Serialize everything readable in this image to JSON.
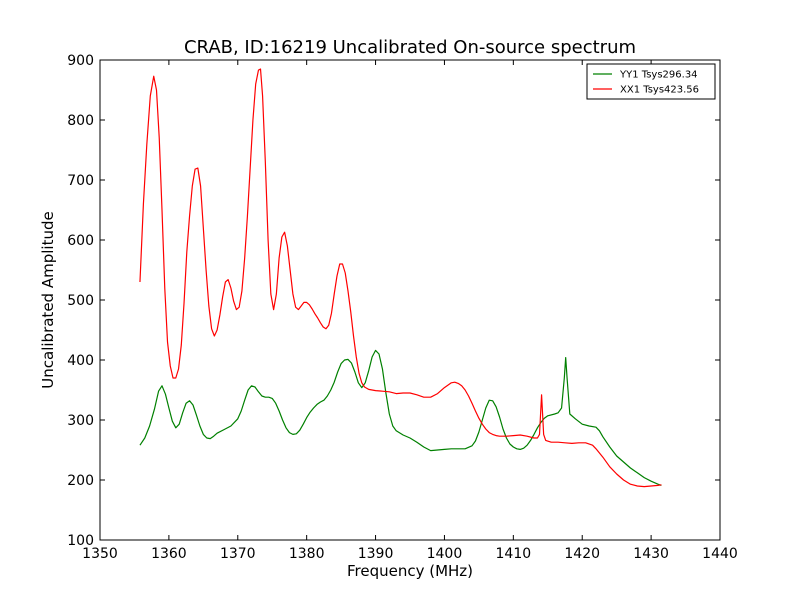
{
  "chart_data": {
    "type": "line",
    "title": "CRAB, ID:16219 Uncalibrated On-source spectrum",
    "xlabel": "Frequency (MHz)",
    "ylabel": "Uncalibrated Amplitude",
    "xlim": [
      1350,
      1440
    ],
    "ylim": [
      100,
      900
    ],
    "xticks": [
      1350,
      1360,
      1370,
      1380,
      1390,
      1400,
      1410,
      1420,
      1430,
      1440
    ],
    "yticks": [
      100,
      200,
      300,
      400,
      500,
      600,
      700,
      800,
      900
    ],
    "grid": false,
    "legend": "top-right",
    "series": [
      {
        "name": "YY1 Tsys296.34",
        "color": "#008000",
        "points": [
          [
            1355.8,
            258
          ],
          [
            1356.5,
            270
          ],
          [
            1357.2,
            290
          ],
          [
            1357.9,
            318
          ],
          [
            1358.5,
            348
          ],
          [
            1359.0,
            357
          ],
          [
            1359.5,
            343
          ],
          [
            1360.0,
            320
          ],
          [
            1360.5,
            298
          ],
          [
            1361.0,
            287
          ],
          [
            1361.5,
            293
          ],
          [
            1362.0,
            312
          ],
          [
            1362.5,
            328
          ],
          [
            1363.0,
            332
          ],
          [
            1363.5,
            325
          ],
          [
            1364.0,
            308
          ],
          [
            1364.5,
            290
          ],
          [
            1365.0,
            276
          ],
          [
            1365.5,
            270
          ],
          [
            1366.0,
            269
          ],
          [
            1366.5,
            273
          ],
          [
            1367.0,
            278
          ],
          [
            1368.0,
            284
          ],
          [
            1369.0,
            290
          ],
          [
            1370.0,
            302
          ],
          [
            1370.5,
            315
          ],
          [
            1371.0,
            333
          ],
          [
            1371.5,
            350
          ],
          [
            1372.0,
            357
          ],
          [
            1372.5,
            355
          ],
          [
            1373.0,
            347
          ],
          [
            1373.5,
            340
          ],
          [
            1374.0,
            338
          ],
          [
            1374.5,
            338
          ],
          [
            1375.0,
            336
          ],
          [
            1375.5,
            328
          ],
          [
            1376.0,
            315
          ],
          [
            1376.5,
            300
          ],
          [
            1377.0,
            287
          ],
          [
            1377.5,
            279
          ],
          [
            1378.0,
            276
          ],
          [
            1378.5,
            277
          ],
          [
            1379.0,
            283
          ],
          [
            1379.5,
            293
          ],
          [
            1380.0,
            304
          ],
          [
            1380.5,
            313
          ],
          [
            1381.0,
            320
          ],
          [
            1381.5,
            326
          ],
          [
            1382.0,
            330
          ],
          [
            1382.5,
            333
          ],
          [
            1383.0,
            340
          ],
          [
            1383.5,
            350
          ],
          [
            1384.0,
            363
          ],
          [
            1384.5,
            380
          ],
          [
            1385.0,
            394
          ],
          [
            1385.5,
            400
          ],
          [
            1386.0,
            401
          ],
          [
            1386.5,
            395
          ],
          [
            1387.0,
            380
          ],
          [
            1387.5,
            362
          ],
          [
            1388.0,
            354
          ],
          [
            1388.5,
            362
          ],
          [
            1389.0,
            382
          ],
          [
            1389.5,
            405
          ],
          [
            1390.0,
            416
          ],
          [
            1390.5,
            410
          ],
          [
            1391.0,
            385
          ],
          [
            1391.5,
            345
          ],
          [
            1392.0,
            310
          ],
          [
            1392.5,
            290
          ],
          [
            1393.0,
            282
          ],
          [
            1394.0,
            275
          ],
          [
            1395.0,
            270
          ],
          [
            1396.0,
            263
          ],
          [
            1397.0,
            255
          ],
          [
            1398.0,
            249
          ],
          [
            1399.0,
            250
          ],
          [
            1400.0,
            251
          ],
          [
            1401.0,
            252
          ],
          [
            1402.0,
            252
          ],
          [
            1403.0,
            252
          ],
          [
            1404.0,
            257
          ],
          [
            1404.5,
            265
          ],
          [
            1405.0,
            280
          ],
          [
            1405.5,
            300
          ],
          [
            1406.0,
            320
          ],
          [
            1406.5,
            333
          ],
          [
            1407.0,
            332
          ],
          [
            1407.5,
            322
          ],
          [
            1408.0,
            305
          ],
          [
            1408.5,
            285
          ],
          [
            1409.0,
            270
          ],
          [
            1409.5,
            260
          ],
          [
            1410.0,
            255
          ],
          [
            1410.5,
            252
          ],
          [
            1411.0,
            251
          ],
          [
            1411.5,
            253
          ],
          [
            1412.0,
            258
          ],
          [
            1412.5,
            266
          ],
          [
            1413.0,
            276
          ],
          [
            1413.5,
            287
          ],
          [
            1414.0,
            296
          ],
          [
            1414.5,
            303
          ],
          [
            1415.0,
            307
          ],
          [
            1416.0,
            310
          ],
          [
            1416.5,
            312
          ],
          [
            1417.0,
            320
          ],
          [
            1417.4,
            370
          ],
          [
            1417.6,
            404
          ],
          [
            1417.8,
            370
          ],
          [
            1418.2,
            310
          ],
          [
            1419.0,
            302
          ],
          [
            1420.0,
            293
          ],
          [
            1421.0,
            290
          ],
          [
            1422.0,
            288
          ],
          [
            1422.5,
            282
          ],
          [
            1423.0,
            272
          ],
          [
            1424.0,
            255
          ],
          [
            1425.0,
            240
          ],
          [
            1426.0,
            230
          ],
          [
            1427.0,
            220
          ],
          [
            1428.0,
            212
          ],
          [
            1429.0,
            204
          ],
          [
            1430.0,
            198
          ],
          [
            1431.0,
            193
          ],
          [
            1431.5,
            191
          ]
        ]
      },
      {
        "name": "XX1 Tsys423.56",
        "color": "#ff0000",
        "points": [
          [
            1355.8,
            530
          ],
          [
            1356.3,
            660
          ],
          [
            1356.8,
            760
          ],
          [
            1357.3,
            840
          ],
          [
            1357.8,
            873
          ],
          [
            1358.2,
            850
          ],
          [
            1358.6,
            770
          ],
          [
            1359.0,
            650
          ],
          [
            1359.4,
            520
          ],
          [
            1359.8,
            430
          ],
          [
            1360.2,
            390
          ],
          [
            1360.6,
            370
          ],
          [
            1361.0,
            370
          ],
          [
            1361.4,
            385
          ],
          [
            1361.8,
            425
          ],
          [
            1362.2,
            495
          ],
          [
            1362.6,
            580
          ],
          [
            1363.0,
            640
          ],
          [
            1363.4,
            690
          ],
          [
            1363.8,
            718
          ],
          [
            1364.2,
            720
          ],
          [
            1364.6,
            690
          ],
          [
            1365.0,
            620
          ],
          [
            1365.4,
            550
          ],
          [
            1365.8,
            490
          ],
          [
            1366.2,
            452
          ],
          [
            1366.6,
            440
          ],
          [
            1367.0,
            450
          ],
          [
            1367.4,
            475
          ],
          [
            1367.8,
            505
          ],
          [
            1368.2,
            530
          ],
          [
            1368.6,
            534
          ],
          [
            1369.0,
            520
          ],
          [
            1369.4,
            498
          ],
          [
            1369.8,
            484
          ],
          [
            1370.2,
            488
          ],
          [
            1370.6,
            515
          ],
          [
            1371.0,
            570
          ],
          [
            1371.4,
            640
          ],
          [
            1371.8,
            720
          ],
          [
            1372.2,
            800
          ],
          [
            1372.6,
            860
          ],
          [
            1373.0,
            883
          ],
          [
            1373.3,
            885
          ],
          [
            1373.6,
            840
          ],
          [
            1374.0,
            730
          ],
          [
            1374.4,
            600
          ],
          [
            1374.8,
            510
          ],
          [
            1375.2,
            484
          ],
          [
            1375.6,
            510
          ],
          [
            1376.0,
            570
          ],
          [
            1376.4,
            605
          ],
          [
            1376.8,
            613
          ],
          [
            1377.2,
            590
          ],
          [
            1377.6,
            550
          ],
          [
            1378.0,
            510
          ],
          [
            1378.4,
            488
          ],
          [
            1378.8,
            484
          ],
          [
            1379.2,
            490
          ],
          [
            1379.6,
            496
          ],
          [
            1380.0,
            496
          ],
          [
            1380.4,
            492
          ],
          [
            1380.8,
            485
          ],
          [
            1381.2,
            477
          ],
          [
            1381.6,
            470
          ],
          [
            1382.0,
            462
          ],
          [
            1382.4,
            455
          ],
          [
            1382.8,
            452
          ],
          [
            1383.2,
            458
          ],
          [
            1383.6,
            478
          ],
          [
            1384.0,
            510
          ],
          [
            1384.4,
            540
          ],
          [
            1384.8,
            560
          ],
          [
            1385.2,
            560
          ],
          [
            1385.6,
            545
          ],
          [
            1386.0,
            515
          ],
          [
            1386.4,
            480
          ],
          [
            1386.8,
            440
          ],
          [
            1387.2,
            405
          ],
          [
            1387.6,
            378
          ],
          [
            1388.0,
            362
          ],
          [
            1388.4,
            355
          ],
          [
            1389.0,
            351
          ],
          [
            1390.0,
            349
          ],
          [
            1391.0,
            348
          ],
          [
            1392.0,
            347
          ],
          [
            1393.0,
            344
          ],
          [
            1394.0,
            345
          ],
          [
            1395.0,
            345
          ],
          [
            1396.0,
            342
          ],
          [
            1397.0,
            338
          ],
          [
            1398.0,
            338
          ],
          [
            1399.0,
            344
          ],
          [
            1400.0,
            354
          ],
          [
            1401.0,
            362
          ],
          [
            1401.5,
            363
          ],
          [
            1402.0,
            361
          ],
          [
            1402.5,
            357
          ],
          [
            1403.0,
            350
          ],
          [
            1403.5,
            340
          ],
          [
            1404.0,
            328
          ],
          [
            1404.5,
            315
          ],
          [
            1405.0,
            303
          ],
          [
            1405.5,
            293
          ],
          [
            1406.0,
            285
          ],
          [
            1406.5,
            279
          ],
          [
            1407.0,
            276
          ],
          [
            1407.5,
            274
          ],
          [
            1408.0,
            273
          ],
          [
            1409.0,
            273
          ],
          [
            1410.0,
            274
          ],
          [
            1411.0,
            275
          ],
          [
            1412.0,
            273
          ],
          [
            1413.0,
            270
          ],
          [
            1413.5,
            270
          ],
          [
            1413.8,
            276
          ],
          [
            1414.1,
            342
          ],
          [
            1414.4,
            276
          ],
          [
            1414.7,
            266
          ],
          [
            1415.5,
            263
          ],
          [
            1416.5,
            263
          ],
          [
            1417.5,
            262
          ],
          [
            1418.5,
            261
          ],
          [
            1419.5,
            262
          ],
          [
            1420.5,
            262
          ],
          [
            1421.5,
            258
          ],
          [
            1422.0,
            252
          ],
          [
            1423.0,
            238
          ],
          [
            1424.0,
            222
          ],
          [
            1425.0,
            210
          ],
          [
            1426.0,
            200
          ],
          [
            1427.0,
            193
          ],
          [
            1428.0,
            190
          ],
          [
            1429.0,
            189
          ],
          [
            1430.0,
            190
          ],
          [
            1431.0,
            191
          ],
          [
            1431.5,
            192
          ]
        ]
      }
    ]
  }
}
